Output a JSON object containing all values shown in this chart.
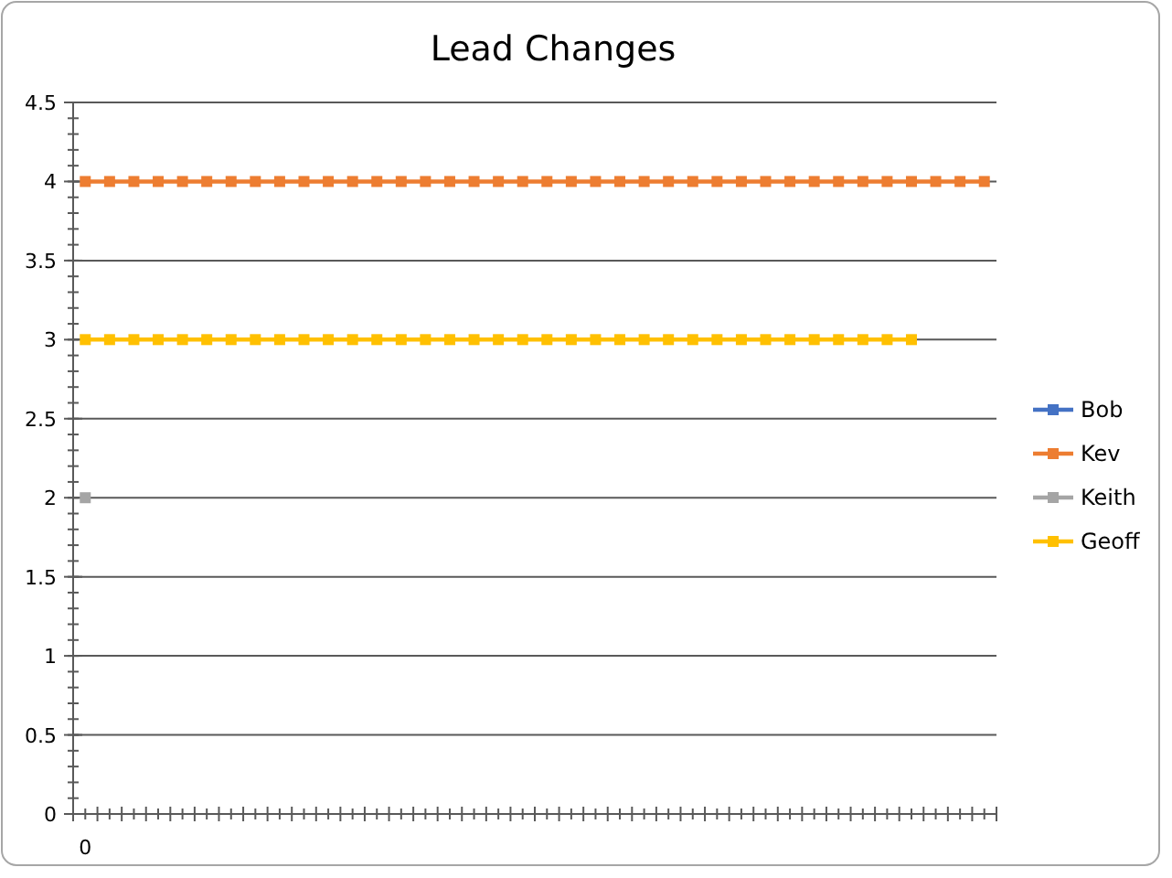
{
  "chart_data": {
    "type": "line",
    "title": "Lead Changes",
    "categories": [
      "0",
      null,
      null,
      null,
      null,
      null,
      null,
      null,
      null,
      null,
      null,
      null,
      null,
      null,
      null,
      null,
      null,
      null,
      null,
      null,
      null,
      null,
      null,
      null,
      null,
      null,
      null,
      null,
      null,
      null,
      null,
      null,
      null,
      null,
      null,
      null,
      null,
      null
    ],
    "series": [
      {
        "name": "Bob",
        "color": "#4472c4",
        "values": [
          null,
          null,
          null,
          null,
          null,
          null,
          null,
          null,
          null,
          null,
          null,
          null,
          null,
          null,
          null,
          null,
          null,
          null,
          null,
          null,
          null,
          null,
          null,
          null,
          null,
          null,
          null,
          null,
          null,
          null,
          null,
          null,
          null,
          null,
          null,
          null,
          null,
          null
        ]
      },
      {
        "name": "Kev",
        "color": "#ed7d31",
        "values": [
          4,
          4,
          4,
          4,
          4,
          4,
          4,
          4,
          4,
          4,
          4,
          4,
          4,
          4,
          4,
          4,
          4,
          4,
          4,
          4,
          4,
          4,
          4,
          4,
          4,
          4,
          4,
          4,
          4,
          4,
          4,
          4,
          4,
          4,
          4,
          4,
          4,
          4
        ]
      },
      {
        "name": "Keith",
        "color": "#a5a5a5",
        "values": [
          2,
          null,
          null,
          null,
          null,
          null,
          null,
          null,
          null,
          null,
          null,
          null,
          null,
          null,
          null,
          null,
          null,
          null,
          null,
          null,
          null,
          null,
          null,
          null,
          null,
          null,
          null,
          null,
          null,
          null,
          null,
          null,
          null,
          null,
          null,
          null,
          null,
          null
        ]
      },
      {
        "name": "Geoff",
        "color": "#ffc000",
        "values": [
          3,
          3,
          3,
          3,
          3,
          3,
          3,
          3,
          3,
          3,
          3,
          3,
          3,
          3,
          3,
          3,
          3,
          3,
          3,
          3,
          3,
          3,
          3,
          3,
          3,
          3,
          3,
          3,
          3,
          3,
          3,
          3,
          3,
          3,
          3,
          null,
          null,
          null
        ]
      }
    ],
    "ylim": [
      0,
      4.5
    ],
    "yticks": [
      0,
      0.5,
      1,
      1.5,
      2,
      2.5,
      3,
      3.5,
      4,
      4.5
    ],
    "grid": "y",
    "legend": "right",
    "marker": "square",
    "line_style": "solid"
  }
}
